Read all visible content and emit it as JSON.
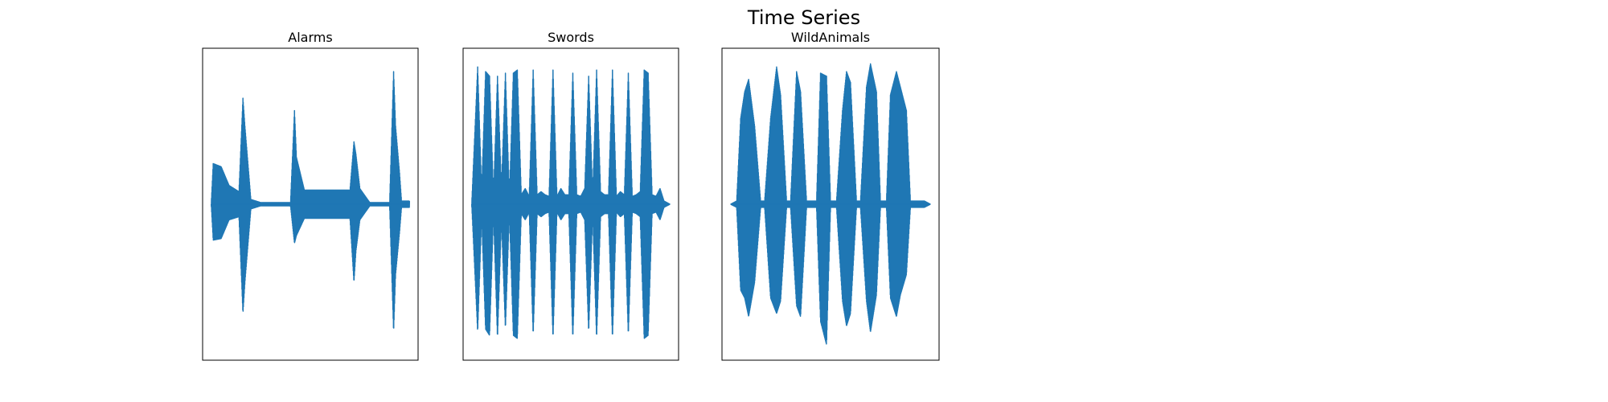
{
  "figure": {
    "title": "Time Series"
  },
  "chart_data": [
    {
      "type": "line",
      "title": "Alarms",
      "xlabel": "",
      "ylabel": "",
      "color": "#1f77b4",
      "grid": false,
      "ylim": [
        -1.0,
        1.0
      ],
      "x_range": [
        0,
        1.0
      ],
      "envelope": {
        "x": [
          0.0,
          0.01,
          0.05,
          0.09,
          0.14,
          0.16,
          0.17,
          0.2,
          0.25,
          0.3,
          0.35,
          0.4,
          0.42,
          0.43,
          0.47,
          0.5,
          0.55,
          0.6,
          0.65,
          0.7,
          0.72,
          0.73,
          0.75,
          0.8,
          0.85,
          0.9,
          0.92,
          0.93,
          0.95,
          0.96
        ],
        "upper": [
          0.0,
          0.26,
          0.24,
          0.12,
          0.08,
          0.68,
          0.5,
          0.03,
          0.01,
          0.01,
          0.01,
          0.01,
          0.6,
          0.3,
          0.09,
          0.09,
          0.09,
          0.09,
          0.09,
          0.09,
          0.4,
          0.32,
          0.1,
          0.01,
          0.01,
          0.01,
          0.85,
          0.5,
          0.2,
          0.02
        ],
        "lower": [
          0.0,
          -0.23,
          -0.22,
          -0.1,
          -0.08,
          -0.7,
          -0.5,
          -0.03,
          -0.01,
          -0.01,
          -0.01,
          -0.01,
          -0.25,
          -0.2,
          -0.09,
          -0.09,
          -0.09,
          -0.09,
          -0.09,
          -0.09,
          -0.5,
          -0.3,
          -0.1,
          -0.01,
          -0.01,
          -0.01,
          -0.82,
          -0.45,
          -0.18,
          -0.02
        ]
      }
    },
    {
      "type": "line",
      "title": "Swords",
      "xlabel": "",
      "ylabel": "",
      "color": "#1f77b4",
      "grid": false,
      "ylim": [
        -1.0,
        1.0
      ],
      "x_range": [
        0,
        1.0
      ],
      "envelope": {
        "x": [
          0.0,
          0.03,
          0.05,
          0.07,
          0.09,
          0.11,
          0.13,
          0.15,
          0.17,
          0.19,
          0.21,
          0.23,
          0.25,
          0.27,
          0.29,
          0.31,
          0.33,
          0.35,
          0.37,
          0.39,
          0.41,
          0.43,
          0.45,
          0.47,
          0.49,
          0.51,
          0.53,
          0.55,
          0.57,
          0.59,
          0.61,
          0.63,
          0.65,
          0.67,
          0.69,
          0.71,
          0.73,
          0.75,
          0.77,
          0.79,
          0.81,
          0.83,
          0.85,
          0.87,
          0.89,
          0.91,
          0.93,
          0.95,
          0.97,
          1.0
        ],
        "upper": [
          0.0,
          0.88,
          0.08,
          0.85,
          0.82,
          0.06,
          0.82,
          0.1,
          0.84,
          0.05,
          0.84,
          0.86,
          0.06,
          0.1,
          0.05,
          0.86,
          0.06,
          0.08,
          0.06,
          0.05,
          0.86,
          0.05,
          0.1,
          0.06,
          0.06,
          0.84,
          0.06,
          0.05,
          0.1,
          0.82,
          0.06,
          0.86,
          0.08,
          0.06,
          0.06,
          0.86,
          0.05,
          0.08,
          0.06,
          0.84,
          0.05,
          0.06,
          0.08,
          0.86,
          0.84,
          0.06,
          0.05,
          0.1,
          0.02,
          0.0
        ],
        "lower": [
          0.0,
          -0.82,
          -0.08,
          -0.8,
          -0.84,
          -0.06,
          -0.86,
          -0.1,
          -0.8,
          -0.05,
          -0.84,
          -0.86,
          -0.06,
          -0.1,
          -0.05,
          -0.84,
          -0.06,
          -0.08,
          -0.06,
          -0.05,
          -0.86,
          -0.05,
          -0.1,
          -0.06,
          -0.06,
          -0.86,
          -0.06,
          -0.05,
          -0.1,
          -0.82,
          -0.06,
          -0.86,
          -0.08,
          -0.06,
          -0.06,
          -0.86,
          -0.05,
          -0.08,
          -0.06,
          -0.84,
          -0.05,
          -0.06,
          -0.08,
          -0.86,
          -0.84,
          -0.06,
          -0.05,
          -0.1,
          -0.02,
          0.0
        ]
      }
    },
    {
      "type": "line",
      "title": "WildAnimals",
      "xlabel": "",
      "ylabel": "",
      "color": "#1f77b4",
      "grid": false,
      "ylim": [
        -1.0,
        1.0
      ],
      "x_range": [
        0,
        1.0
      ],
      "envelope": {
        "x": [
          0.0,
          0.03,
          0.05,
          0.07,
          0.09,
          0.12,
          0.15,
          0.17,
          0.2,
          0.23,
          0.25,
          0.28,
          0.3,
          0.33,
          0.35,
          0.38,
          0.41,
          0.43,
          0.45,
          0.48,
          0.5,
          0.53,
          0.56,
          0.58,
          0.6,
          0.63,
          0.65,
          0.68,
          0.7,
          0.73,
          0.75,
          0.78,
          0.8,
          0.83,
          0.85,
          0.88,
          0.9,
          0.92,
          0.95,
          0.97,
          1.0
        ],
        "upper": [
          0.0,
          0.02,
          0.55,
          0.72,
          0.8,
          0.5,
          0.02,
          0.02,
          0.55,
          0.88,
          0.7,
          0.02,
          0.02,
          0.85,
          0.72,
          0.02,
          0.02,
          0.02,
          0.84,
          0.82,
          0.02,
          0.02,
          0.6,
          0.85,
          0.78,
          0.02,
          0.02,
          0.75,
          0.9,
          0.72,
          0.02,
          0.02,
          0.7,
          0.85,
          0.75,
          0.6,
          0.02,
          0.02,
          0.02,
          0.02,
          0.0
        ],
        "lower": [
          0.0,
          -0.02,
          -0.55,
          -0.6,
          -0.72,
          -0.5,
          -0.02,
          -0.02,
          -0.6,
          -0.7,
          -0.62,
          -0.02,
          -0.02,
          -0.65,
          -0.72,
          -0.02,
          -0.02,
          -0.02,
          -0.75,
          -0.9,
          -0.02,
          -0.02,
          -0.62,
          -0.78,
          -0.7,
          -0.02,
          -0.02,
          -0.62,
          -0.82,
          -0.58,
          -0.02,
          -0.02,
          -0.6,
          -0.72,
          -0.58,
          -0.45,
          -0.02,
          -0.02,
          -0.02,
          -0.02,
          0.0
        ]
      }
    }
  ]
}
